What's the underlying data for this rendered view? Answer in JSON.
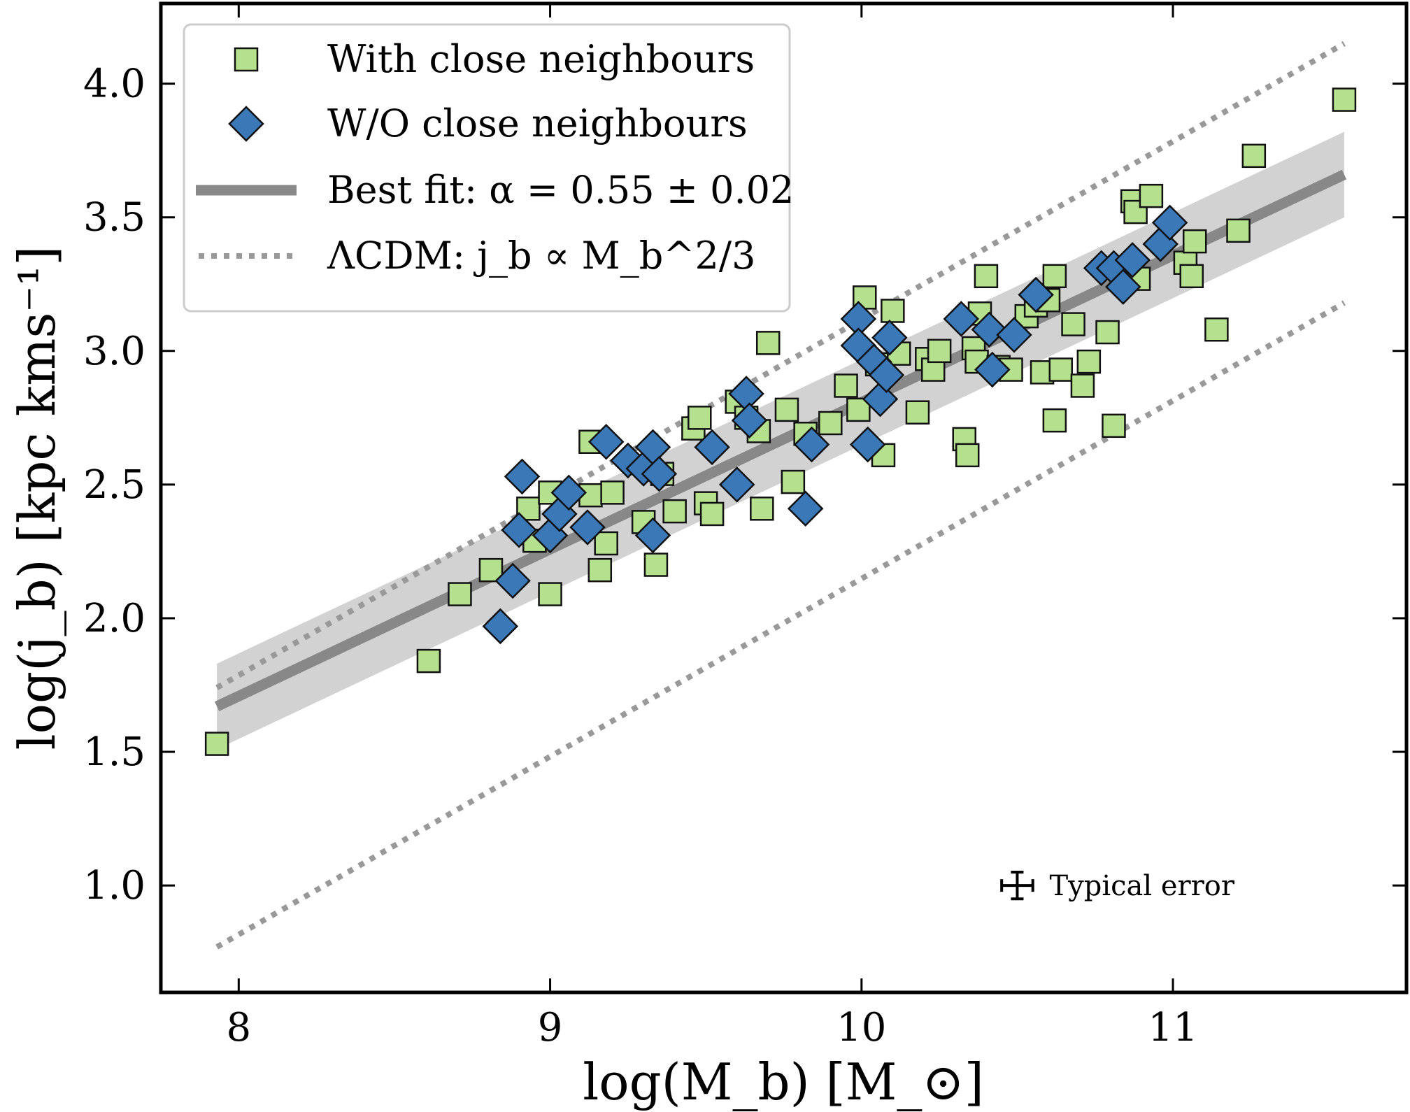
{
  "colors": {
    "square_fill": "#b5e08d",
    "diamond_fill": "#3a78b8",
    "marker_edge": "#111111",
    "fit_line": "#888888",
    "fit_band": "#d2d2d2",
    "lcdm_line": "#999999"
  },
  "chart_data": {
    "type": "scatter",
    "xlabel": "log(M_b) [M_⊙]",
    "ylabel": "log(j_b) [kpc kms⁻¹]",
    "xlim": [
      7.75,
      11.75
    ],
    "ylim": [
      0.6,
      4.3
    ],
    "x_ticks": [
      8,
      9,
      10,
      11
    ],
    "x_tick_labels": [
      "8",
      "9",
      "10",
      "11"
    ],
    "y_ticks": [
      1.0,
      1.5,
      2.0,
      2.5,
      3.0,
      3.5,
      4.0
    ],
    "y_tick_labels": [
      "1.0",
      "1.5",
      "2.0",
      "2.5",
      "3.0",
      "3.5",
      "4.0"
    ],
    "grid": false,
    "legend_position": "top-left",
    "legend": [
      {
        "label": "With close neighbours",
        "kind": "square"
      },
      {
        "label": "W/O close neighbours",
        "kind": "diamond"
      },
      {
        "label": "Best fit: α = 0.55 ± 0.02",
        "kind": "solid-line"
      },
      {
        "label": "ΛCDM: j_b ∝ M_b^2/3",
        "kind": "dotted-line"
      }
    ],
    "series": [
      {
        "name": "With close neighbours",
        "marker": "square",
        "points": [
          [
            7.93,
            1.53
          ],
          [
            8.61,
            1.84
          ],
          [
            8.71,
            2.09
          ],
          [
            8.81,
            2.18
          ],
          [
            8.93,
            2.41
          ],
          [
            8.95,
            2.29
          ],
          [
            9.0,
            2.09
          ],
          [
            9.0,
            2.47
          ],
          [
            9.13,
            2.66
          ],
          [
            9.13,
            2.46
          ],
          [
            9.16,
            2.18
          ],
          [
            9.18,
            2.28
          ],
          [
            9.2,
            2.47
          ],
          [
            9.3,
            2.36
          ],
          [
            9.34,
            2.2
          ],
          [
            9.36,
            2.54
          ],
          [
            9.4,
            2.4
          ],
          [
            9.46,
            2.71
          ],
          [
            9.48,
            2.75
          ],
          [
            9.5,
            2.43
          ],
          [
            9.52,
            2.39
          ],
          [
            9.6,
            2.81
          ],
          [
            9.63,
            2.75
          ],
          [
            9.67,
            2.7
          ],
          [
            9.68,
            2.41
          ],
          [
            9.7,
            3.03
          ],
          [
            9.76,
            2.78
          ],
          [
            9.78,
            2.51
          ],
          [
            9.82,
            2.69
          ],
          [
            9.9,
            2.73
          ],
          [
            9.95,
            2.87
          ],
          [
            9.99,
            2.78
          ],
          [
            10.01,
            3.2
          ],
          [
            10.05,
            2.95
          ],
          [
            10.07,
            2.61
          ],
          [
            10.1,
            3.15
          ],
          [
            10.12,
            2.99
          ],
          [
            10.18,
            2.77
          ],
          [
            10.21,
            2.97
          ],
          [
            10.23,
            2.93
          ],
          [
            10.25,
            3.0
          ],
          [
            10.33,
            2.67
          ],
          [
            10.34,
            2.61
          ],
          [
            10.36,
            3.01
          ],
          [
            10.37,
            2.96
          ],
          [
            10.38,
            3.14
          ],
          [
            10.4,
            3.28
          ],
          [
            10.44,
            2.94
          ],
          [
            10.48,
            2.93
          ],
          [
            10.53,
            3.13
          ],
          [
            10.56,
            3.17
          ],
          [
            10.58,
            2.92
          ],
          [
            10.6,
            3.19
          ],
          [
            10.62,
            2.74
          ],
          [
            10.62,
            3.28
          ],
          [
            10.64,
            2.93
          ],
          [
            10.68,
            3.1
          ],
          [
            10.71,
            2.87
          ],
          [
            10.73,
            2.96
          ],
          [
            10.79,
            3.07
          ],
          [
            10.81,
            2.72
          ],
          [
            10.87,
            3.56
          ],
          [
            10.88,
            3.52
          ],
          [
            10.89,
            3.27
          ],
          [
            10.93,
            3.58
          ],
          [
            11.04,
            3.33
          ],
          [
            11.06,
            3.28
          ],
          [
            11.07,
            3.41
          ],
          [
            11.14,
            3.08
          ],
          [
            11.21,
            3.45
          ],
          [
            11.26,
            3.73
          ],
          [
            11.55,
            3.94
          ]
        ]
      },
      {
        "name": "W/O close neighbours",
        "marker": "diamond",
        "points": [
          [
            8.84,
            1.97
          ],
          [
            8.88,
            2.14
          ],
          [
            8.9,
            2.33
          ],
          [
            8.91,
            2.53
          ],
          [
            9.0,
            2.31
          ],
          [
            9.03,
            2.39
          ],
          [
            9.06,
            2.47
          ],
          [
            9.12,
            2.34
          ],
          [
            9.18,
            2.66
          ],
          [
            9.25,
            2.59
          ],
          [
            9.3,
            2.56
          ],
          [
            9.33,
            2.31
          ],
          [
            9.33,
            2.64
          ],
          [
            9.35,
            2.54
          ],
          [
            9.52,
            2.64
          ],
          [
            9.6,
            2.5
          ],
          [
            9.63,
            2.84
          ],
          [
            9.64,
            2.74
          ],
          [
            9.82,
            2.41
          ],
          [
            9.84,
            2.65
          ],
          [
            9.99,
            3.12
          ],
          [
            9.99,
            3.02
          ],
          [
            10.02,
            2.65
          ],
          [
            10.04,
            2.96
          ],
          [
            10.06,
            2.82
          ],
          [
            10.08,
            2.91
          ],
          [
            10.09,
            3.05
          ],
          [
            10.32,
            3.12
          ],
          [
            10.41,
            3.08
          ],
          [
            10.42,
            2.93
          ],
          [
            10.49,
            3.06
          ],
          [
            10.56,
            3.21
          ],
          [
            10.77,
            3.31
          ],
          [
            10.81,
            3.31
          ],
          [
            10.84,
            3.24
          ],
          [
            10.87,
            3.34
          ],
          [
            10.96,
            3.4
          ],
          [
            10.99,
            3.48
          ]
        ]
      }
    ],
    "best_fit": {
      "slope": 0.55,
      "slope_err": 0.02,
      "x_range": [
        7.93,
        11.55
      ],
      "y_range": [
        1.67,
        3.66
      ],
      "band_halfwidth": 0.16
    },
    "lcdm_relation": {
      "slope": 0.6667,
      "lines": [
        [
          [
            7.93,
            1.74
          ],
          [
            11.55,
            4.15
          ]
        ],
        [
          [
            7.93,
            0.77
          ],
          [
            11.55,
            3.18
          ]
        ]
      ]
    },
    "typical_error": {
      "label": "Typical error",
      "x": 10.5,
      "y": 1.0,
      "xerr": 0.05,
      "yerr": 0.05
    }
  }
}
